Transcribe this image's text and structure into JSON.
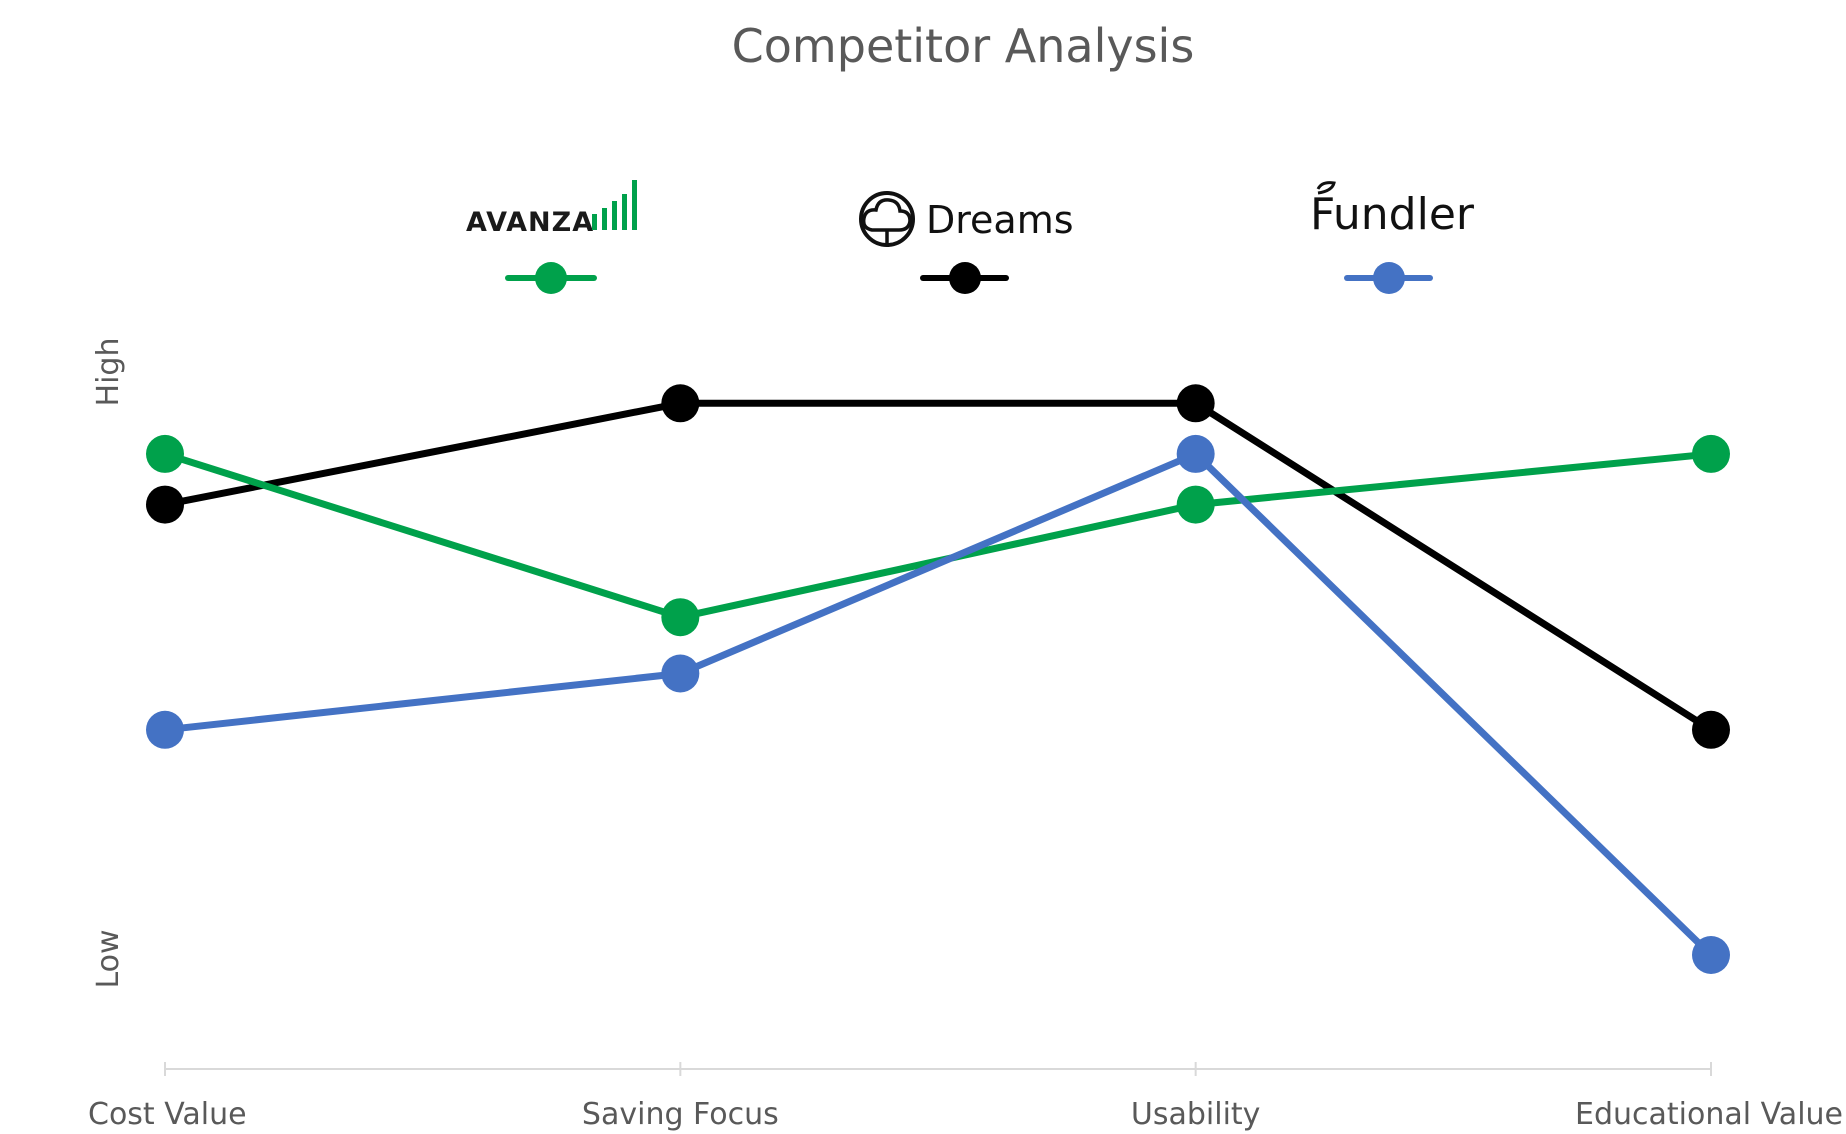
{
  "chart_data": {
    "type": "line",
    "title": "Competitor Analysis",
    "categories": [
      "Cost Value",
      "Saving Focus",
      "Usability",
      "Educational Value"
    ],
    "y_tick_labels": {
      "high": "High",
      "low": "Low"
    },
    "ylim": [
      0,
      10
    ],
    "grid": false,
    "legend_position": "top",
    "series": [
      {
        "name": "AVANZA",
        "color": "#00A14B",
        "logo_icon": "avanza-bars-icon",
        "values": [
          8.9,
          6.0,
          8.0,
          8.9
        ]
      },
      {
        "name": "Dreams",
        "color": "#000000",
        "logo_icon": "dreams-cloud-icon",
        "values": [
          8.0,
          9.8,
          9.8,
          4.0
        ]
      },
      {
        "name": "Fundler",
        "color": "#4472C4",
        "logo_icon": "fundler-leaf-icon",
        "values": [
          4.0,
          5.0,
          8.9,
          0.0
        ]
      }
    ]
  }
}
